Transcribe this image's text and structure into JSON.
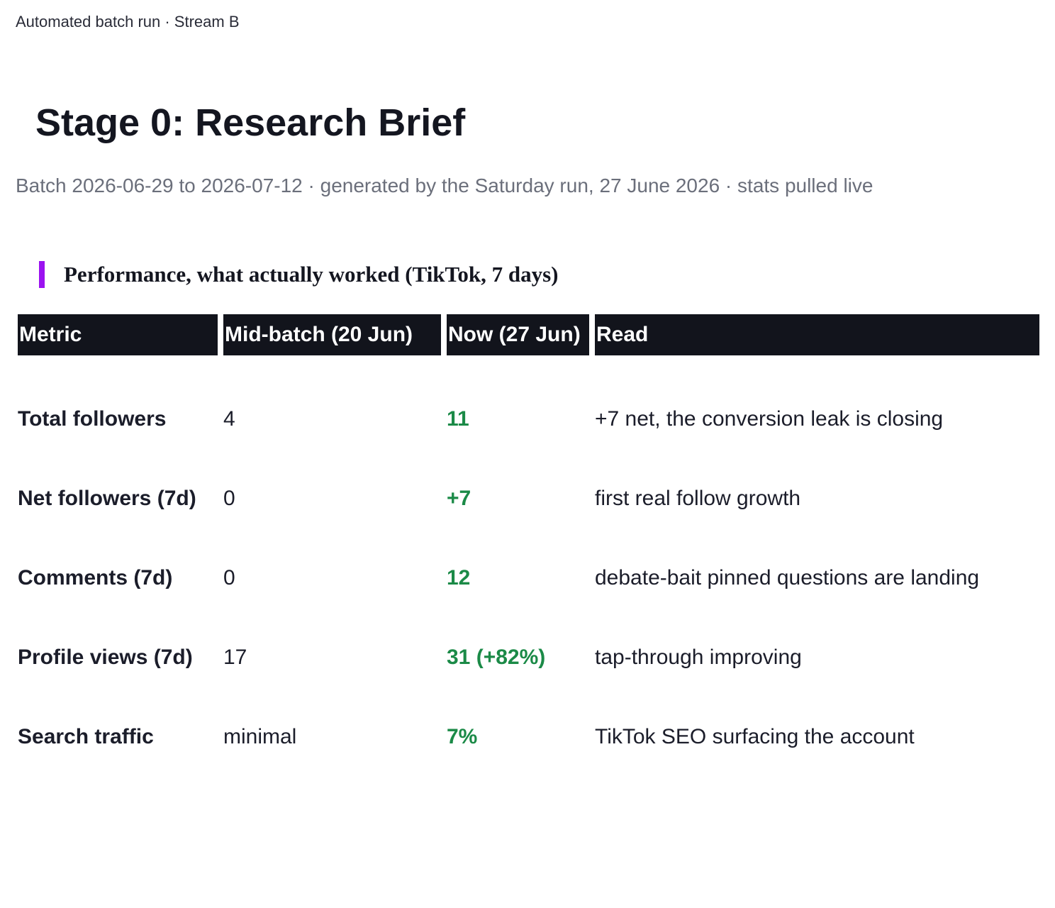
{
  "header": {
    "kicker": "Automated batch run · Stream B",
    "title": "Stage 0: Research Brief",
    "subtitle": "Batch 2026-06-29 to 2026-07-12 · generated by the Saturday run, 27 June 2026 · stats pulled live"
  },
  "section": {
    "heading": "Performance, what actually worked (TikTok, 7 days)"
  },
  "table": {
    "columns": [
      "Metric",
      "Mid-batch (20 Jun)",
      "Now (27 Jun)",
      "Read"
    ],
    "rows": [
      [
        "Total followers",
        "4",
        "11",
        "+7 net, the conversion leak is closing"
      ],
      [
        "Net followers (7d)",
        "0",
        "+7",
        "first real follow growth"
      ],
      [
        "Comments (7d)",
        "0",
        "12",
        "debate-bait pinned questions are landing"
      ],
      [
        "Profile views (7d)",
        "17",
        "31 (+82%)",
        "tap-through improving"
      ],
      [
        "Search traffic",
        "minimal",
        "7%",
        "TikTok SEO surfacing the account"
      ]
    ]
  }
}
